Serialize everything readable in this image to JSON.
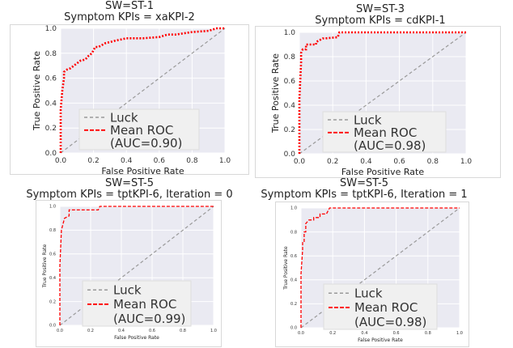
{
  "chart_data": [
    {
      "type": "line",
      "title": "SW=ST-1",
      "subtitle": "Symptom KPIs = xaKPI-2",
      "xlabel": "False Positive Rate",
      "ylabel": "True Positive Rate",
      "xlim": [
        0,
        1
      ],
      "ylim": [
        0,
        1
      ],
      "xticks": [
        "0.0",
        "0.2",
        "0.4",
        "0.6",
        "0.8",
        "1.0"
      ],
      "yticks": [
        "0.0",
        "0.2",
        "0.4",
        "0.6",
        "0.8",
        "1.0"
      ],
      "grid": true,
      "legend_placement": "bottom-center",
      "series": [
        {
          "name": "Luck",
          "color": "#999999",
          "style": "dashed",
          "x": [
            0,
            1
          ],
          "y": [
            0,
            1
          ]
        },
        {
          "name": "Mean ROC",
          "color": "#ff0000",
          "style": "dotted",
          "x": [
            0,
            0.0,
            0.01,
            0.02,
            0.02,
            0.04,
            0.06,
            0.08,
            0.1,
            0.12,
            0.15,
            0.17,
            0.19,
            0.21,
            0.23,
            0.27,
            0.33,
            0.4,
            0.5,
            0.6,
            0.65,
            0.7,
            0.8,
            0.9,
            0.95,
            1.0
          ],
          "y": [
            0,
            0.35,
            0.5,
            0.6,
            0.65,
            0.67,
            0.68,
            0.7,
            0.72,
            0.74,
            0.75,
            0.78,
            0.8,
            0.85,
            0.85,
            0.88,
            0.9,
            0.92,
            0.92,
            0.93,
            0.95,
            0.95,
            0.97,
            0.98,
            1.0,
            1.0
          ]
        }
      ],
      "legend": [
        "Luck",
        "Mean ROC",
        "(AUC=0.90)"
      ]
    },
    {
      "type": "line",
      "title": "SW=ST-3",
      "subtitle": "Symptom KPIs = cdKPI-1",
      "xlabel": "False Positive Rate",
      "ylabel": "True Positive Rate",
      "xlim": [
        0,
        1
      ],
      "ylim": [
        0,
        1
      ],
      "xticks": [
        "0.0",
        "0.2",
        "0.4",
        "0.6",
        "0.8",
        "1.0"
      ],
      "yticks": [
        "0.0",
        "0.2",
        "0.4",
        "0.6",
        "0.8",
        "1.0"
      ],
      "grid": true,
      "legend_placement": "bottom-right",
      "series": [
        {
          "name": "Luck",
          "color": "#999999",
          "style": "dashed",
          "x": [
            0,
            1
          ],
          "y": [
            0,
            1
          ]
        },
        {
          "name": "Mean ROC",
          "color": "#ff0000",
          "style": "dotted",
          "x": [
            0,
            0.0,
            0.01,
            0.01,
            0.02,
            0.04,
            0.04,
            0.1,
            0.1,
            0.14,
            0.15,
            0.23,
            0.24,
            0.3,
            1.0
          ],
          "y": [
            0,
            0.45,
            0.75,
            0.83,
            0.86,
            0.86,
            0.9,
            0.9,
            0.92,
            0.95,
            0.95,
            0.96,
            1.0,
            1.0,
            1.0
          ]
        }
      ],
      "legend": [
        "Luck",
        "Mean ROC",
        "(AUC=0.98)"
      ]
    },
    {
      "type": "line",
      "title": "SW=ST-5",
      "subtitle": "Symptom KPIs = tptKPI-6, Iteration = 0",
      "xlabel": "False Positive Rate",
      "ylabel": "True Positive Rate",
      "xlim": [
        0,
        1
      ],
      "ylim": [
        0,
        1
      ],
      "xticks": [
        "0.0",
        "0.2",
        "0.4",
        "0.6",
        "0.8",
        "1.0"
      ],
      "yticks": [
        "0.0",
        "0.2",
        "0.4",
        "0.6",
        "0.8",
        "1.0"
      ],
      "grid": true,
      "legend_placement": "bottom-right",
      "series": [
        {
          "name": "Luck",
          "color": "#999999",
          "style": "dashed",
          "x": [
            0,
            1
          ],
          "y": [
            0,
            1
          ]
        },
        {
          "name": "Mean ROC",
          "color": "#ff0000",
          "style": "dashed",
          "x": [
            0,
            0.0,
            0.01,
            0.03,
            0.06,
            0.06,
            0.25,
            0.26,
            1.0
          ],
          "y": [
            0,
            0.5,
            0.8,
            0.9,
            0.92,
            0.97,
            0.97,
            1.0,
            1.0
          ]
        }
      ],
      "legend": [
        "Luck",
        "Mean ROC",
        "(AUC=0.99)"
      ]
    },
    {
      "type": "line",
      "title": "SW=ST-5",
      "subtitle": "Symptom KPIs = tptKPI-6, Iteration = 1",
      "xlabel": "False Positive Rate",
      "ylabel": "True Positive Rate",
      "xlim": [
        0,
        1
      ],
      "ylim": [
        0,
        1
      ],
      "xticks": [
        "0.0",
        "0.2",
        "0.4",
        "0.6",
        "0.8",
        "1.0"
      ],
      "yticks": [
        "0.0",
        "0.2",
        "0.4",
        "0.6",
        "0.8",
        "1.0"
      ],
      "grid": true,
      "legend_placement": "bottom-right",
      "series": [
        {
          "name": "Luck",
          "color": "#999999",
          "style": "dashed",
          "x": [
            0,
            1
          ],
          "y": [
            0,
            1
          ]
        },
        {
          "name": "Mean ROC",
          "color": "#ff0000",
          "style": "dashed",
          "x": [
            0,
            0.0,
            0.01,
            0.01,
            0.02,
            0.02,
            0.03,
            0.03,
            0.05,
            0.08,
            0.08,
            0.12,
            0.12,
            0.16,
            0.18,
            0.26,
            1.0
          ],
          "y": [
            0,
            0.45,
            0.65,
            0.72,
            0.72,
            0.8,
            0.8,
            0.87,
            0.9,
            0.9,
            0.92,
            0.92,
            0.95,
            0.95,
            1.0,
            1.0,
            1.0
          ]
        }
      ],
      "legend": [
        "Luck",
        "Mean ROC",
        "(AUC=0.98)"
      ]
    }
  ]
}
